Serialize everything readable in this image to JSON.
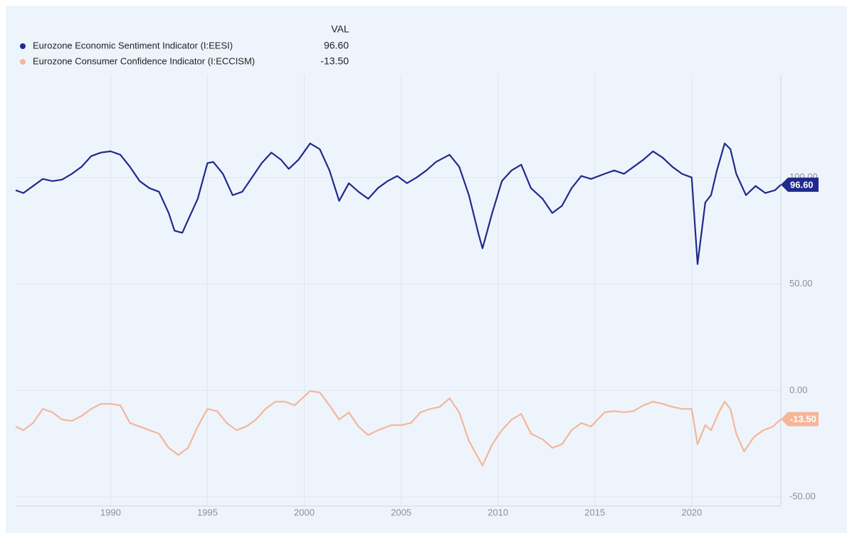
{
  "chart_data": {
    "type": "line",
    "legend_header": "VAL",
    "xlim": [
      1985.1,
      2024.6
    ],
    "xticks": [
      1990,
      1995,
      2000,
      2005,
      2010,
      2015,
      2020
    ],
    "ylim": [
      -54.3,
      148.3
    ],
    "yticks": [
      {
        "value": 100,
        "label": "100.00"
      },
      {
        "value": 50,
        "label": "50.00"
      },
      {
        "value": 0,
        "label": "0.00"
      },
      {
        "value": -50,
        "label": "-50.00"
      }
    ],
    "grid": true,
    "series": [
      {
        "name": "Eurozone Economic Sentiment Indicator (I:EESI)",
        "color": "#1f2a8c",
        "latest": 96.6,
        "latest_label": "96.60",
        "x": [
          1985.1,
          1985.5,
          1986.0,
          1986.5,
          1987.0,
          1987.5,
          1988.0,
          1988.5,
          1989.0,
          1989.5,
          1990.0,
          1990.5,
          1991.0,
          1991.5,
          1992.0,
          1992.5,
          1993.0,
          1993.3,
          1993.7,
          1994.0,
          1994.5,
          1995.0,
          1995.3,
          1995.8,
          1996.3,
          1996.8,
          1997.3,
          1997.8,
          1998.3,
          1998.8,
          1999.2,
          1999.7,
          2000.3,
          2000.8,
          2001.3,
          2001.8,
          2002.3,
          2002.8,
          2003.3,
          2003.8,
          2004.3,
          2004.8,
          2005.3,
          2005.8,
          2006.3,
          2006.8,
          2007.5,
          2008.0,
          2008.5,
          2009.0,
          2009.2,
          2009.7,
          2010.2,
          2010.7,
          2011.2,
          2011.7,
          2012.3,
          2012.8,
          2013.3,
          2013.8,
          2014.3,
          2014.8,
          2015.5,
          2016.0,
          2016.5,
          2017.0,
          2017.5,
          2018.0,
          2018.5,
          2019.0,
          2019.5,
          2020.0,
          2020.3,
          2020.7,
          2021.0,
          2021.3,
          2021.7,
          2022.0,
          2022.3,
          2022.8,
          2023.3,
          2023.8,
          2024.3,
          2024.6
        ],
        "values": [
          94,
          92.7,
          96,
          99.3,
          98.3,
          99,
          101.7,
          105,
          110,
          111.7,
          112.3,
          110.7,
          105,
          98.3,
          95,
          93.3,
          83.3,
          75,
          74,
          80,
          90,
          106.7,
          107.3,
          101.7,
          91.7,
          93.3,
          100,
          106.7,
          111.7,
          108.3,
          104,
          108.3,
          116,
          113.3,
          103.3,
          89,
          97.3,
          93.3,
          90,
          95,
          98.3,
          100.7,
          97.3,
          100,
          103.3,
          107.3,
          110.7,
          105,
          91.7,
          73.3,
          66.7,
          83.3,
          98.3,
          103.3,
          106,
          95,
          90,
          83.3,
          86.7,
          95,
          100.7,
          99.3,
          101.7,
          103.3,
          101.7,
          105,
          108.3,
          112.3,
          109.3,
          105,
          101.7,
          100,
          59.3,
          88.3,
          91.7,
          103.3,
          116,
          113.3,
          101.7,
          91.7,
          96,
          92.7,
          94,
          96.6
        ]
      },
      {
        "name": "Eurozone Consumer Confidence Indicator (I:ECCISM)",
        "color": "#f5b697",
        "latest": -13.5,
        "latest_label": "-13.50",
        "x": [
          1985.1,
          1985.5,
          1986.0,
          1986.5,
          1987.0,
          1987.5,
          1988.0,
          1988.5,
          1989.0,
          1989.5,
          1990.0,
          1990.5,
          1991.0,
          1991.5,
          1992.0,
          1992.5,
          1993.0,
          1993.5,
          1994.0,
          1994.5,
          1995.0,
          1995.5,
          1996.0,
          1996.5,
          1997.0,
          1997.5,
          1998.0,
          1998.5,
          1999.0,
          1999.5,
          2000.3,
          2000.8,
          2001.3,
          2001.8,
          2002.3,
          2002.8,
          2003.3,
          2003.8,
          2004.5,
          2005.0,
          2005.5,
          2006.0,
          2006.5,
          2007.0,
          2007.5,
          2008.0,
          2008.5,
          2009.2,
          2009.7,
          2010.2,
          2010.7,
          2011.2,
          2011.7,
          2012.3,
          2012.8,
          2013.3,
          2013.8,
          2014.3,
          2014.8,
          2015.5,
          2016.0,
          2016.5,
          2017.0,
          2017.5,
          2018.0,
          2018.5,
          2019.0,
          2019.5,
          2020.0,
          2020.3,
          2020.7,
          2021.0,
          2021.4,
          2021.7,
          2022.0,
          2022.3,
          2022.7,
          2023.2,
          2023.7,
          2024.2,
          2024.6
        ],
        "values": [
          -17,
          -18.7,
          -15.3,
          -8.7,
          -10.3,
          -13.7,
          -14.3,
          -12,
          -8.7,
          -6.3,
          -6.3,
          -7,
          -15.3,
          -17,
          -18.7,
          -20.3,
          -27,
          -30.3,
          -27,
          -17,
          -8.7,
          -9.7,
          -15.3,
          -18.7,
          -17,
          -13.7,
          -8.7,
          -5.3,
          -5.3,
          -7,
          -0.3,
          -1,
          -7,
          -13.7,
          -10.3,
          -17,
          -21,
          -18.7,
          -16.3,
          -16.3,
          -15.3,
          -10.3,
          -8.7,
          -7.7,
          -3.7,
          -10.3,
          -23.7,
          -35.3,
          -25.3,
          -18.7,
          -13.7,
          -11,
          -20.3,
          -23,
          -27,
          -25.3,
          -18.7,
          -15.3,
          -17,
          -10.3,
          -9.7,
          -10.3,
          -9.7,
          -7,
          -5.3,
          -6.3,
          -7.7,
          -8.7,
          -8.7,
          -25.3,
          -16.3,
          -18.7,
          -10.3,
          -5.3,
          -8.7,
          -20.3,
          -28.7,
          -22,
          -18.7,
          -17,
          -13.5
        ]
      }
    ]
  }
}
